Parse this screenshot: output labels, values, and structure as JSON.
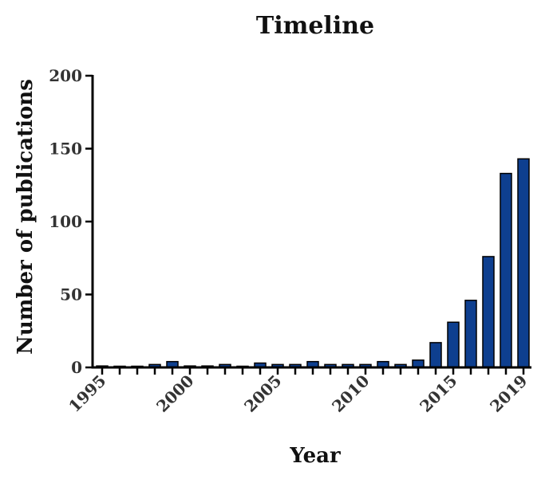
{
  "chart_data": {
    "type": "bar",
    "title": "Timeline",
    "xlabel": "Year",
    "ylabel": "Number of publications",
    "ylim": [
      0,
      200
    ],
    "yticks": [
      0,
      50,
      100,
      150,
      200
    ],
    "x_tick_labels": [
      "1995",
      "2000",
      "2005",
      "2010",
      "2015",
      "2019"
    ],
    "categories": [
      "1995",
      "1996",
      "1997",
      "1998",
      "1999",
      "2000",
      "2001",
      "2002",
      "2003",
      "2004",
      "2005",
      "2006",
      "2007",
      "2008",
      "2009",
      "2010",
      "2011",
      "2012",
      "2013",
      "2014",
      "2015",
      "2016",
      "2017",
      "2018",
      "2019"
    ],
    "values": [
      1,
      0,
      0,
      2,
      4,
      1,
      1,
      2,
      0,
      3,
      2,
      2,
      4,
      2,
      2,
      2,
      4,
      2,
      5,
      17,
      31,
      46,
      76,
      133,
      143
    ],
    "bar_color": "#0e3f8f",
    "grid": false
  }
}
